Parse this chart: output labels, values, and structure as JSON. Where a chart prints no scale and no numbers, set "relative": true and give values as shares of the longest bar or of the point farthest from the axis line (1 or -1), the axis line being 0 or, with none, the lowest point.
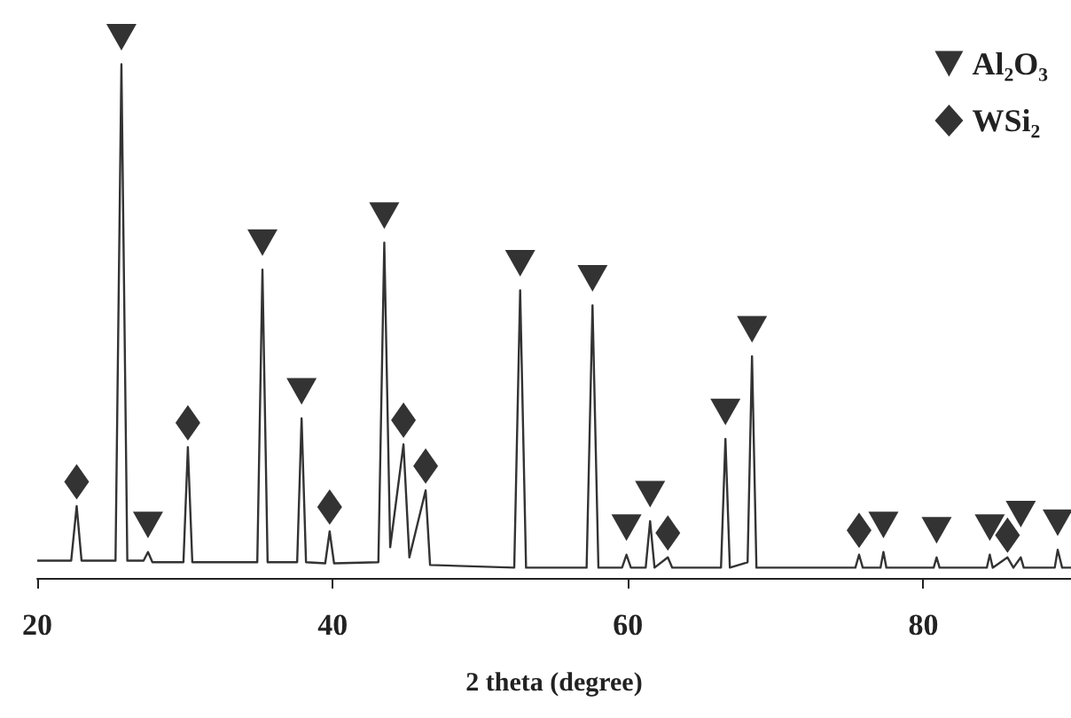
{
  "chart_data": {
    "type": "line",
    "xlabel": "2 theta (degree)",
    "relative": true,
    "xlim": [
      20,
      90
    ],
    "xticks": [
      20,
      40,
      60,
      80
    ],
    "grid": false,
    "legend": "top right",
    "series": [
      {
        "color": "#333333",
        "marker": "none",
        "x": [
          20,
          22.3,
          22.67,
          23.0,
          25.3,
          25.7,
          26.1,
          27.2,
          27.5,
          27.8,
          29.9,
          30.2,
          30.5,
          34.9,
          35.25,
          35.6,
          37.6,
          37.9,
          38.2,
          39.5,
          39.8,
          40.1,
          43.1,
          43.5,
          43.9,
          44.8,
          45.2,
          46.3,
          46.6,
          52.3,
          52.7,
          53.1,
          57.2,
          57.6,
          58.0,
          59.6,
          59.9,
          60.2,
          61.2,
          61.5,
          61.8,
          62.7,
          63.0,
          66.3,
          66.6,
          66.9,
          68.1,
          68.4,
          68.7,
          75.4,
          75.65,
          75.9,
          77.1,
          77.3,
          77.5,
          80.7,
          80.9,
          81.1,
          84.3,
          84.5,
          84.7,
          85.7,
          86.1,
          86.6,
          86.8,
          88.9,
          89.1,
          89.4,
          90
        ],
        "values": [
          0.032,
          0.032,
          0.133,
          0.032,
          0.032,
          0.95,
          0.032,
          0.032,
          0.048,
          0.029,
          0.029,
          0.242,
          0.029,
          0.029,
          0.57,
          0.029,
          0.029,
          0.295,
          0.029,
          0.027,
          0.086,
          0.027,
          0.029,
          0.62,
          0.057,
          0.247,
          0.038,
          0.162,
          0.024,
          0.019,
          0.532,
          0.019,
          0.019,
          0.504,
          0.019,
          0.019,
          0.043,
          0.019,
          0.019,
          0.105,
          0.019,
          0.038,
          0.019,
          0.019,
          0.257,
          0.019,
          0.029,
          0.41,
          0.019,
          0.019,
          0.043,
          0.019,
          0.019,
          0.048,
          0.019,
          0.019,
          0.038,
          0.019,
          0.019,
          0.043,
          0.019,
          0.038,
          0.019,
          0.038,
          0.019,
          0.019,
          0.052,
          0.019,
          0.019
        ]
      },
      {
        "type": "scatter",
        "name": "Al₂O₃",
        "color": "#000000",
        "marker": "triangle",
        "x": [
          25.7,
          27.5,
          35.25,
          37.9,
          43.5,
          52.7,
          57.6,
          59.9,
          61.5,
          66.6,
          68.4,
          77.3,
          80.9,
          84.5,
          86.6,
          89.1
        ],
        "values": [
          1.0,
          0.098,
          0.62,
          0.345,
          0.67,
          0.582,
          0.554,
          0.093,
          0.155,
          0.307,
          0.46,
          0.098,
          0.088,
          0.093,
          0.118,
          0.102
        ]
      },
      {
        "type": "scatter",
        "name": "WSi₂",
        "color": "#000000",
        "marker": "diamond",
        "x": [
          22.67,
          30.2,
          39.8,
          44.8,
          46.3,
          62.7,
          75.65,
          85.7
        ],
        "values": [
          0.178,
          0.287,
          0.131,
          0.292,
          0.207,
          0.083,
          0.088,
          0.079
        ]
      }
    ]
  }
}
